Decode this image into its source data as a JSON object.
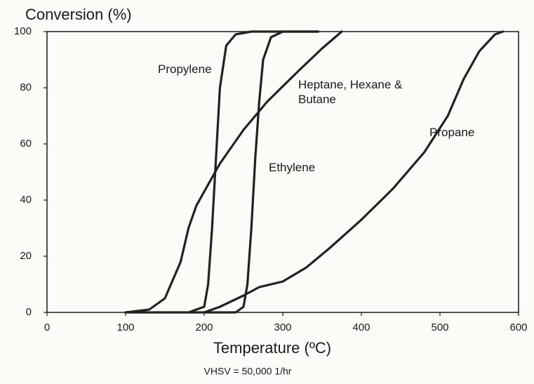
{
  "chart_data": {
    "type": "line",
    "title": "Conversion (%)",
    "x_label": "Temperature (ºC)",
    "subtitle": "VHSV = 50,000 1/hr",
    "xlim": [
      0,
      600
    ],
    "xticks": [
      0,
      100,
      200,
      300,
      400,
      500,
      600
    ],
    "ylim": [
      0,
      100
    ],
    "yticks": [
      0,
      20,
      40,
      60,
      80,
      100
    ],
    "series": [
      {
        "name": "Propylene",
        "color": "#222222",
        "x": [
          180,
          200,
          205,
          210,
          215,
          220,
          228,
          240,
          260,
          345
        ],
        "values": [
          0,
          2,
          10,
          30,
          55,
          80,
          95,
          99,
          100,
          100
        ]
      },
      {
        "name": "Heptane, Hexane & Butane",
        "color": "#222222",
        "x": [
          100,
          130,
          150,
          170,
          180,
          190,
          200,
          220,
          250,
          280,
          320,
          350,
          375
        ],
        "values": [
          0,
          1,
          5,
          18,
          30,
          38,
          43,
          53,
          65,
          75,
          86,
          94,
          100
        ]
      },
      {
        "name": "Ethylene",
        "color": "#222222",
        "x": [
          100,
          240,
          250,
          255,
          260,
          265,
          270,
          275,
          285,
          300,
          345
        ],
        "values": [
          0,
          0,
          2,
          10,
          30,
          55,
          75,
          90,
          98,
          100,
          100
        ]
      },
      {
        "name": "Propane",
        "color": "#222222",
        "x": [
          200,
          220,
          250,
          270,
          300,
          330,
          360,
          400,
          440,
          480,
          510,
          530,
          550,
          570,
          580
        ],
        "values": [
          0,
          2,
          6,
          9,
          11,
          16,
          23,
          33,
          44,
          57,
          70,
          83,
          93,
          99,
          100
        ]
      }
    ]
  }
}
